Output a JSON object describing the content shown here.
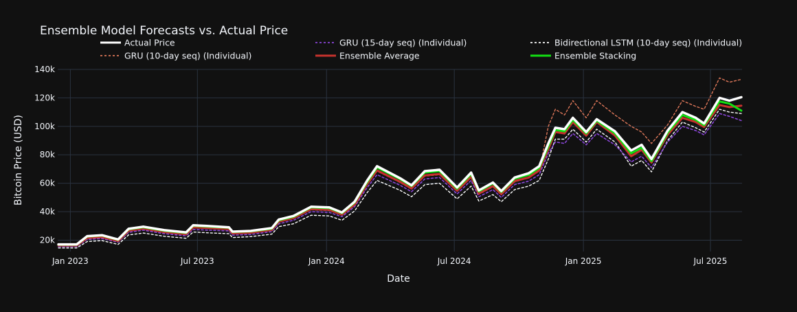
{
  "chart_data": {
    "type": "line",
    "title": "Ensemble Model Forecasts vs. Actual Price",
    "xlabel": "Date",
    "ylabel": "Bitcoin Price (USD)",
    "x_ticks": [
      "Jan 2023",
      "Jul 2023",
      "Jan 2024",
      "Jul 2024",
      "Jan 2025",
      "Jul 2025"
    ],
    "y_ticks": [
      "20k",
      "40k",
      "60k",
      "80k",
      "100k",
      "120k",
      "140k"
    ],
    "xlim": [
      "2022-12-14",
      "2025-08-15"
    ],
    "ylim": [
      12000,
      140000
    ],
    "grid": true,
    "legend_position": "top",
    "x": [
      "2022-12-15",
      "2023-01-10",
      "2023-01-25",
      "2023-02-15",
      "2023-03-10",
      "2023-03-25",
      "2023-04-15",
      "2023-05-15",
      "2023-06-15",
      "2023-06-25",
      "2023-07-15",
      "2023-08-15",
      "2023-08-20",
      "2023-09-15",
      "2023-10-15",
      "2023-10-25",
      "2023-11-15",
      "2023-12-10",
      "2024-01-05",
      "2024-01-23",
      "2024-02-10",
      "2024-02-28",
      "2024-03-13",
      "2024-04-15",
      "2024-05-01",
      "2024-05-20",
      "2024-06-10",
      "2024-07-05",
      "2024-07-25",
      "2024-08-05",
      "2024-08-25",
      "2024-09-06",
      "2024-09-25",
      "2024-10-15",
      "2024-10-30",
      "2024-11-12",
      "2024-11-22",
      "2024-12-05",
      "2024-12-17",
      "2025-01-05",
      "2025-01-20",
      "2025-02-15",
      "2025-03-10",
      "2025-03-25",
      "2025-04-08",
      "2025-05-01",
      "2025-05-22",
      "2025-06-10",
      "2025-06-22",
      "2025-07-14",
      "2025-07-28",
      "2025-08-14"
    ],
    "series": [
      {
        "name": "Actual Price",
        "color": "#ffffff",
        "dash": "solid",
        "width": 3.5,
        "values": [
          17000,
          17000,
          22800,
          23500,
          20500,
          28000,
          29500,
          27000,
          25500,
          30500,
          30000,
          29000,
          26000,
          26500,
          28500,
          34500,
          37000,
          43500,
          43000,
          39500,
          47000,
          62000,
          72000,
          63500,
          58500,
          68500,
          69500,
          57000,
          67500,
          55000,
          60500,
          54500,
          64000,
          67000,
          72000,
          88000,
          99000,
          98000,
          106000,
          96000,
          105000,
          96500,
          83000,
          87000,
          77000,
          97000,
          110000,
          106000,
          102000,
          120000,
          118000,
          120500
        ]
      },
      {
        "name": "GRU (15-day seq) (Individual)",
        "color": "#8b46d9",
        "dash": "3,3",
        "width": 1.6,
        "values": [
          15500,
          15500,
          20500,
          21200,
          18500,
          25500,
          27000,
          24500,
          23000,
          27500,
          27000,
          26500,
          23500,
          24000,
          26000,
          31500,
          34000,
          40000,
          39500,
          36500,
          43500,
          57000,
          66000,
          58500,
          54000,
          63000,
          64000,
          52500,
          62000,
          50500,
          55500,
          50000,
          59000,
          61500,
          66000,
          81000,
          89000,
          88000,
          95000,
          87000,
          95000,
          87000,
          75000,
          79000,
          71000,
          89000,
          100000,
          97000,
          94000,
          109000,
          107000,
          104000
        ]
      },
      {
        "name": "Bidirectional LSTM (10-day seq) (Individual)",
        "color": "#ffffff",
        "dash": "3,3",
        "width": 1.4,
        "values": [
          14500,
          14500,
          19000,
          19700,
          17000,
          23700,
          25000,
          22700,
          21300,
          25700,
          25200,
          24500,
          21800,
          22500,
          24200,
          29500,
          31500,
          37500,
          37000,
          34000,
          40500,
          53500,
          62000,
          55000,
          50500,
          59000,
          60000,
          49000,
          58000,
          47500,
          52000,
          47000,
          55500,
          58000,
          62000,
          77000,
          91000,
          91000,
          98000,
          89000,
          98000,
          89000,
          72000,
          76000,
          68000,
          90000,
          103000,
          99000,
          96000,
          112000,
          110000,
          109000
        ]
      },
      {
        "name": "GRU (10-day seq) (Individual)",
        "color": "#e0785a",
        "dash": "3,3",
        "width": 1.4,
        "values": [
          16000,
          16000,
          21300,
          22000,
          19200,
          26500,
          28000,
          25500,
          24000,
          28800,
          28300,
          27500,
          24500,
          25000,
          27000,
          32700,
          35200,
          41300,
          40800,
          37500,
          44800,
          59000,
          68500,
          60500,
          55800,
          65000,
          66000,
          54200,
          64000,
          52200,
          57500,
          51800,
          61000,
          63800,
          68500,
          100000,
          112000,
          108000,
          118000,
          106000,
          118000,
          108000,
          100000,
          96000,
          88000,
          101000,
          118000,
          114000,
          112000,
          134000,
          131000,
          133000
        ]
      },
      {
        "name": "Ensemble Average",
        "color": "#c8322d",
        "dash": "solid",
        "width": 3,
        "values": [
          16300,
          16300,
          21500,
          22200,
          19400,
          26700,
          28200,
          25700,
          24200,
          29000,
          28500,
          27800,
          24800,
          25300,
          27200,
          33000,
          35500,
          41800,
          41300,
          38000,
          45000,
          59500,
          69000,
          61000,
          56300,
          65500,
          66500,
          54700,
          64500,
          52700,
          58000,
          52300,
          61500,
          64000,
          69000,
          84000,
          96000,
          95000,
          103000,
          93500,
          103000,
          93500,
          79000,
          83500,
          74500,
          94000,
          106000,
          103000,
          99500,
          115000,
          113500,
          114500
        ]
      },
      {
        "name": "Ensemble Stacking",
        "color": "#12e012",
        "dash": "solid",
        "width": 3,
        "values": [
          16800,
          16800,
          22500,
          23200,
          20200,
          27600,
          29100,
          26600,
          25100,
          30100,
          29600,
          28700,
          25700,
          26200,
          28100,
          34000,
          36500,
          43000,
          42500,
          39000,
          46500,
          61000,
          71000,
          62800,
          58000,
          67500,
          68500,
          56200,
          66500,
          54200,
          59800,
          53900,
          63200,
          65800,
          70800,
          86000,
          97500,
          96500,
          104500,
          95000,
          104000,
          95000,
          81000,
          85000,
          75500,
          95500,
          108000,
          104500,
          100800,
          117500,
          116000,
          111000
        ]
      }
    ]
  }
}
